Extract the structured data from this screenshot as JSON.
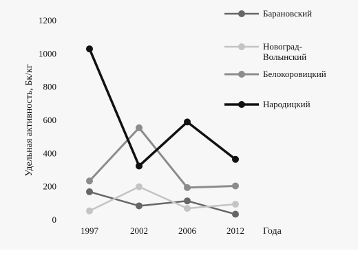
{
  "chart_data": {
    "type": "line",
    "xlabel": "Года",
    "ylabel": "Удельная активность, Бк/кг",
    "categories": [
      "1997",
      "2002",
      "2006",
      "2012"
    ],
    "ylim": [
      0,
      1200
    ],
    "yticks": [
      0,
      200,
      400,
      600,
      800,
      1000,
      1200
    ],
    "grid": false,
    "legend": "right",
    "series": [
      {
        "name": "Барановский",
        "values": [
          170,
          85,
          115,
          35
        ],
        "color": "#666666",
        "width": 2.5
      },
      {
        "name": "Новоград-Волынский",
        "name_lines": [
          "Новоград-",
          "Волынский"
        ],
        "values": [
          55,
          200,
          70,
          95
        ],
        "color": "#c4c4c4",
        "width": 2.5
      },
      {
        "name": "Белокоровицкий",
        "values": [
          235,
          555,
          195,
          205
        ],
        "color": "#8c8c8c",
        "width": 3
      },
      {
        "name": "Народицкий",
        "values": [
          1030,
          325,
          590,
          365
        ],
        "color": "#111111",
        "width": 3.5
      }
    ]
  }
}
